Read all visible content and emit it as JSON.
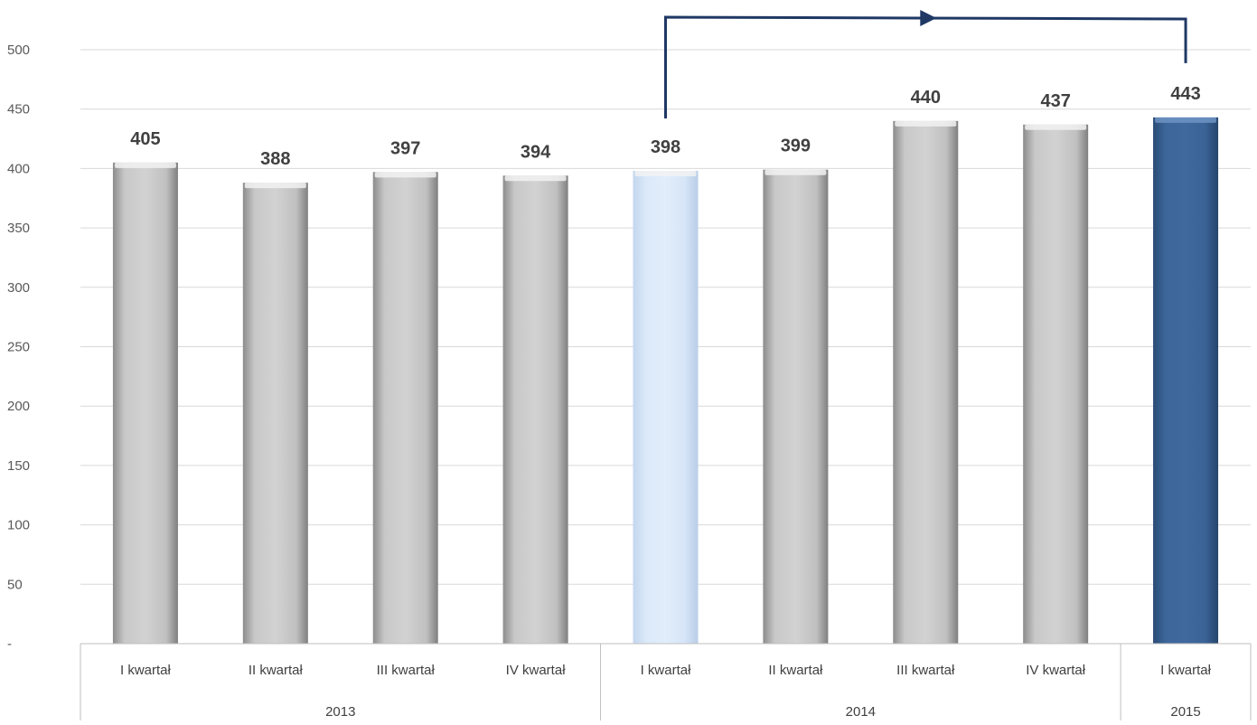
{
  "chart_data": {
    "type": "bar",
    "categories": [
      "I kwartał",
      "II kwartał",
      "III kwartał",
      "IV kwartał",
      "I kwartał",
      "II kwartał",
      "III kwartał",
      "IV kwartał",
      "I kwartał"
    ],
    "groups": [
      {
        "label": "2013",
        "count": 4
      },
      {
        "label": "2014",
        "count": 4
      },
      {
        "label": "2015",
        "count": 1
      }
    ],
    "values": [
      405,
      388,
      397,
      394,
      398,
      399,
      440,
      437,
      443
    ],
    "data_labels": [
      "405",
      "388",
      "397",
      "394",
      "398",
      "399",
      "440",
      "437",
      "443"
    ],
    "bar_colors": [
      "#bfbfbf",
      "#bfbfbf",
      "#bfbfbf",
      "#bfbfbf",
      "#d6e6f8",
      "#bfbfbf",
      "#bfbfbf",
      "#bfbfbf",
      "#3b6496"
    ],
    "ylim": [
      0,
      500
    ],
    "yticks": [
      0,
      50,
      100,
      150,
      200,
      250,
      300,
      350,
      400,
      450,
      500
    ],
    "ytick_labels": [
      "-",
      "50",
      "100",
      "150",
      "200",
      "250",
      "300",
      "350",
      "400",
      "450",
      "500"
    ],
    "grid": true,
    "title": "",
    "xlabel": "",
    "ylabel": "",
    "annotation": {
      "type": "arrow",
      "from_category_index": 4,
      "to_category_index": 8,
      "color": "#1f3864"
    },
    "colors": {
      "gridline": "#d9d9d9",
      "axis": "#bfbfbf",
      "text": "#404040",
      "tick_text": "#595959"
    }
  }
}
